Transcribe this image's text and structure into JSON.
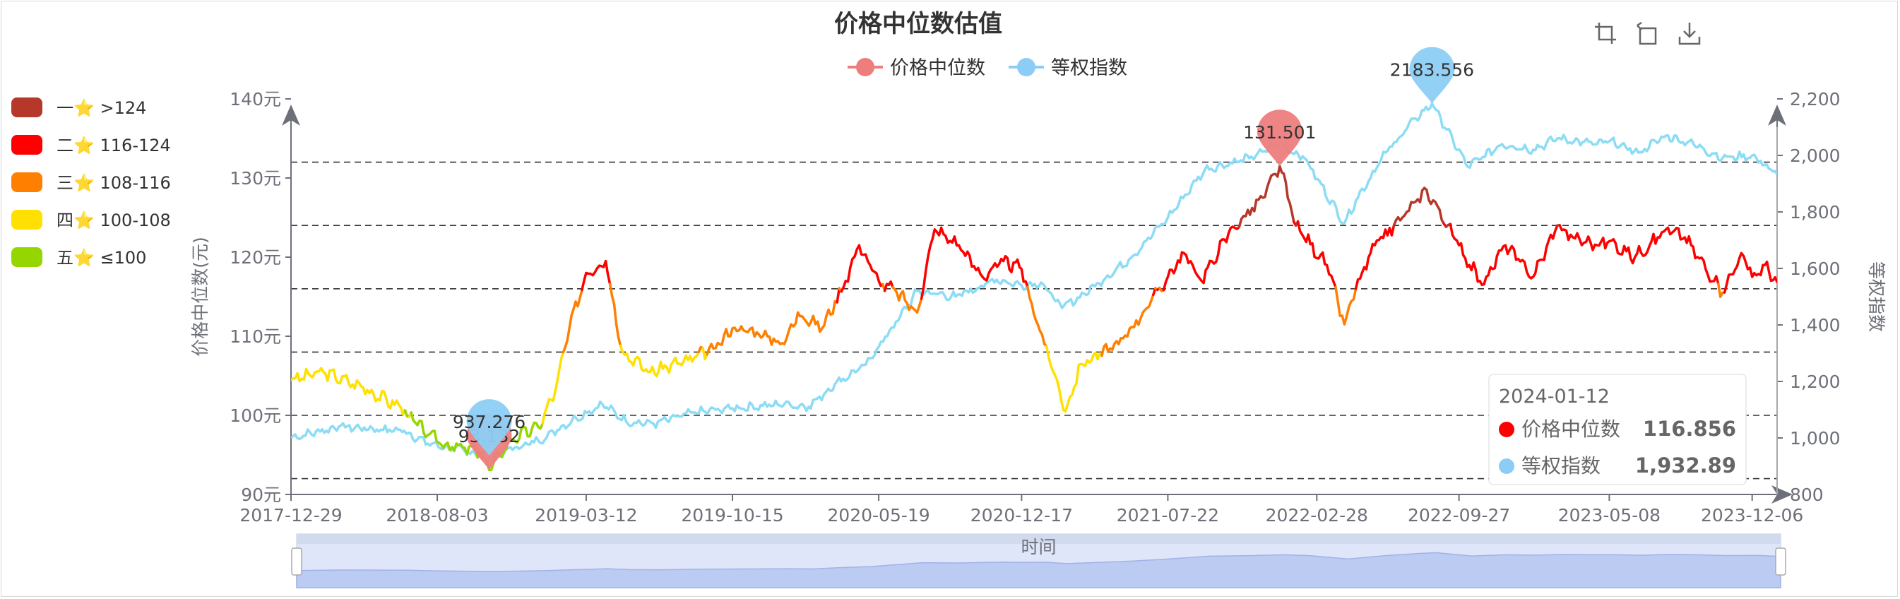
{
  "chart_data": {
    "type": "line",
    "title": "价格中位数估值",
    "legend": {
      "position": "top-center",
      "items": [
        "价格中位数",
        "等权指数"
      ]
    },
    "x_axis": {
      "label": "时间",
      "range": [
        "2017-12-29",
        "2024-01-12"
      ],
      "tick_labels": [
        "2017-12-29",
        "2018-08-03",
        "2019-03-12",
        "2019-10-15",
        "2020-05-19",
        "2020-12-17",
        "2021-07-22",
        "2022-02-28",
        "2022-09-27",
        "2023-05-08",
        "2023-12-06"
      ]
    },
    "y_axis_left": {
      "label": "价格中位数(元)",
      "range": [
        90,
        140
      ],
      "tick_labels": [
        "90元",
        "100元",
        "110元",
        "120元",
        "130元",
        "140元"
      ]
    },
    "y_axis_right": {
      "label": "等权指数",
      "range": [
        800,
        2200
      ],
      "tick_labels": [
        "800",
        "1,000",
        "1,200",
        "1,400",
        "1,600",
        "1,800",
        "2,000",
        "2,200"
      ]
    },
    "reference_lines_left": [
      92,
      100,
      108,
      116,
      124,
      132
    ],
    "visual_map": {
      "position": "left",
      "pieces": [
        {
          "label": "一⭐ >124",
          "color": "#b5382a"
        },
        {
          "label": "二⭐ 116-124",
          "color": "#ff0000"
        },
        {
          "label": "三⭐ 108-116",
          "color": "#ff7f00"
        },
        {
          "label": "四⭐ 100-108",
          "color": "#ffe000"
        },
        {
          "label": "五⭐ ≤100",
          "color": "#96d600"
        }
      ]
    },
    "series": [
      {
        "name": "价格中位数",
        "axis": "left",
        "color": "#ff0000",
        "marker_color": "#ee7d7d",
        "points": [
          [
            "2017-12-29",
            104.5
          ],
          [
            "2018-02-15",
            105.5
          ],
          [
            "2018-04-15",
            103.5
          ],
          [
            "2018-06-10",
            101.0
          ],
          [
            "2018-07-20",
            97.5
          ],
          [
            "2018-08-25",
            96.0
          ],
          [
            "2018-10-05",
            95.5
          ],
          [
            "2018-10-19",
            93.1
          ],
          [
            "2018-11-20",
            97.0
          ],
          [
            "2018-12-31",
            98.5
          ],
          [
            "2019-01-25",
            103.0
          ],
          [
            "2019-02-15",
            111.0
          ],
          [
            "2019-03-12",
            118.0
          ],
          [
            "2019-04-10",
            119.5
          ],
          [
            "2019-05-05",
            108.0
          ],
          [
            "2019-06-15",
            105.5
          ],
          [
            "2019-08-10",
            107.0
          ],
          [
            "2019-09-20",
            108.5
          ],
          [
            "2019-10-15",
            111.0
          ],
          [
            "2019-11-20",
            110.5
          ],
          [
            "2019-12-31",
            109.0
          ],
          [
            "2020-01-20",
            113.0
          ],
          [
            "2020-02-25",
            111.0
          ],
          [
            "2020-03-31",
            117.0
          ],
          [
            "2020-04-20",
            121.5
          ],
          [
            "2020-05-19",
            117.0
          ],
          [
            "2020-06-15",
            115.5
          ],
          [
            "2020-07-15",
            113.0
          ],
          [
            "2020-08-10",
            123.5
          ],
          [
            "2020-09-15",
            121.5
          ],
          [
            "2020-10-20",
            117.5
          ],
          [
            "2020-11-20",
            119.5
          ],
          [
            "2020-12-17",
            118.5
          ],
          [
            "2021-01-10",
            111.5
          ],
          [
            "2021-02-05",
            105.0
          ],
          [
            "2021-02-20",
            100.5
          ],
          [
            "2021-03-15",
            106.5
          ],
          [
            "2021-05-10",
            109.0
          ],
          [
            "2021-06-15",
            113.0
          ],
          [
            "2021-07-22",
            117.5
          ],
          [
            "2021-08-15",
            120.5
          ],
          [
            "2021-09-10",
            117.0
          ],
          [
            "2021-10-20",
            123.0
          ],
          [
            "2021-12-10",
            127.5
          ],
          [
            "2022-01-04",
            131.5
          ],
          [
            "2022-01-28",
            124.0
          ],
          [
            "2022-03-15",
            119.0
          ],
          [
            "2022-04-10",
            111.5
          ],
          [
            "2022-04-27",
            116.0
          ],
          [
            "2022-05-25",
            121.5
          ],
          [
            "2022-07-05",
            125.0
          ],
          [
            "2022-08-10",
            128.5
          ],
          [
            "2022-09-27",
            121.5
          ],
          [
            "2022-10-31",
            116.5
          ],
          [
            "2022-12-05",
            121.5
          ],
          [
            "2023-01-15",
            117.5
          ],
          [
            "2023-02-20",
            124.0
          ],
          [
            "2023-03-15",
            122.5
          ],
          [
            "2023-04-20",
            121.5
          ],
          [
            "2023-05-08",
            122.0
          ],
          [
            "2023-06-15",
            120.0
          ],
          [
            "2023-07-31",
            123.5
          ],
          [
            "2023-08-28",
            122.5
          ],
          [
            "2023-10-23",
            115.5
          ],
          [
            "2023-11-20",
            120.5
          ],
          [
            "2023-12-06",
            117.5
          ],
          [
            "2023-12-25",
            119.0
          ],
          [
            "2024-01-12",
            116.856
          ]
        ]
      },
      {
        "name": "等权指数",
        "axis": "right",
        "color": "#8cdcf5",
        "marker_color": "#8ccdf5",
        "points": [
          [
            "2017-12-29",
            1000
          ],
          [
            "2018-03-10",
            1040
          ],
          [
            "2018-06-15",
            1025
          ],
          [
            "2018-07-20",
            980
          ],
          [
            "2018-10-19",
            937.3
          ],
          [
            "2018-12-31",
            990
          ],
          [
            "2019-02-25",
            1070
          ],
          [
            "2019-04-05",
            1120
          ],
          [
            "2019-05-10",
            1060
          ],
          [
            "2019-06-20",
            1050
          ],
          [
            "2019-08-20",
            1090
          ],
          [
            "2019-10-15",
            1105
          ],
          [
            "2019-12-31",
            1120
          ],
          [
            "2020-02-05",
            1110
          ],
          [
            "2020-03-15",
            1190
          ],
          [
            "2020-04-30",
            1260
          ],
          [
            "2020-06-20",
            1430
          ],
          [
            "2020-07-15",
            1520
          ],
          [
            "2020-09-10",
            1500
          ],
          [
            "2020-11-10",
            1560
          ],
          [
            "2020-12-17",
            1540
          ],
          [
            "2021-01-15",
            1550
          ],
          [
            "2021-02-15",
            1460
          ],
          [
            "2021-03-20",
            1510
          ],
          [
            "2021-05-25",
            1630
          ],
          [
            "2021-07-22",
            1780
          ],
          [
            "2021-09-15",
            1950
          ],
          [
            "2021-11-20",
            1990
          ],
          [
            "2022-01-04",
            2040
          ],
          [
            "2022-02-10",
            1990
          ],
          [
            "2022-04-10",
            1760
          ],
          [
            "2022-04-27",
            1840
          ],
          [
            "2022-06-10",
            2010
          ],
          [
            "2022-07-25",
            2130
          ],
          [
            "2022-08-18",
            2183.556
          ],
          [
            "2022-10-10",
            1960
          ],
          [
            "2022-11-30",
            2040
          ],
          [
            "2023-01-15",
            2020
          ],
          [
            "2023-02-20",
            2060
          ],
          [
            "2023-04-20",
            2040
          ],
          [
            "2023-05-08",
            2050
          ],
          [
            "2023-06-20",
            2010
          ],
          [
            "2023-07-31",
            2070
          ],
          [
            "2023-09-10",
            2040
          ],
          [
            "2023-10-23",
            1990
          ],
          [
            "2023-12-06",
            2000
          ],
          [
            "2024-01-12",
            1932.89
          ]
        ]
      }
    ],
    "mark_points": [
      {
        "series": "价格中位数",
        "label": "131.501",
        "x": "2022-01-04",
        "y": 131.501
      },
      {
        "series": "价格中位数",
        "label": "93.132",
        "x": "2018-10-19",
        "y": 93.132
      },
      {
        "series": "等权指数",
        "label": "2183.556",
        "x": "2022-08-18",
        "y": 2183.556
      },
      {
        "series": "等权指数",
        "label": "937.276",
        "x": "2018-10-19",
        "y": 937.276
      }
    ],
    "tooltip": {
      "date": "2024-01-12",
      "rows": [
        {
          "name": "价格中位数",
          "value": "116.856",
          "color": "#ff0000"
        },
        {
          "name": "等权指数",
          "value": "1,932.89",
          "color": "#8ccdf5"
        }
      ]
    },
    "toolbox": [
      "zoom-icon",
      "restore-icon",
      "download-icon"
    ],
    "data_zoom": {
      "range": "full"
    }
  }
}
